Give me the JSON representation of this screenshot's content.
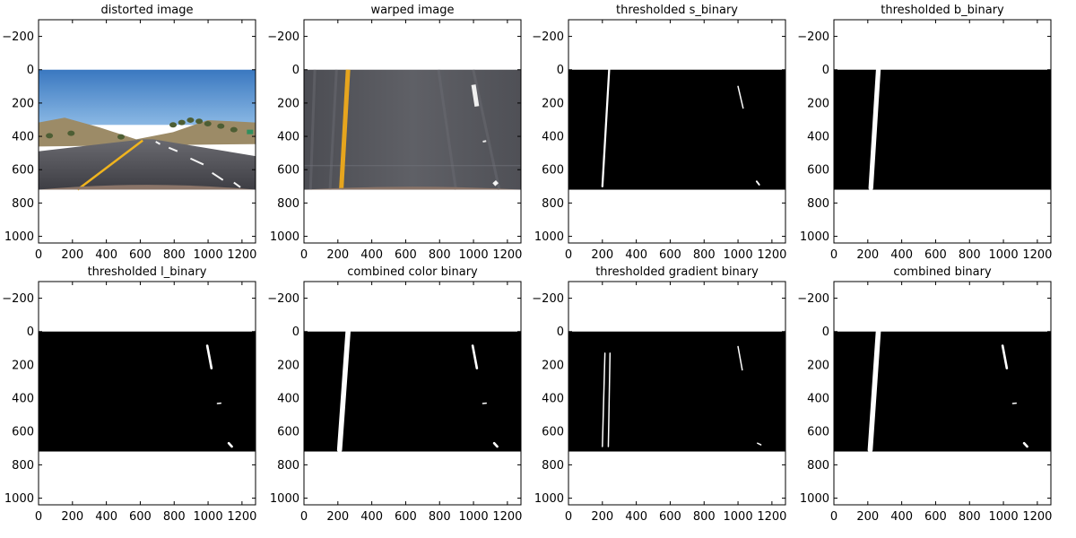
{
  "figure": {
    "axis_ticks": {
      "x": [
        0,
        200,
        400,
        600,
        800,
        1000,
        1200
      ],
      "y": [
        -200,
        0,
        200,
        400,
        600,
        800,
        1000
      ],
      "xlim": [
        0,
        1280
      ],
      "ylim": [
        1040,
        -300
      ]
    },
    "image_extent": {
      "width": 1280,
      "height": 720
    }
  },
  "chart_data": [
    {
      "type": "image",
      "title": "distorted image",
      "content": "color road photo",
      "colors": {
        "sky": "#4a86c8",
        "hills": "#9c8b67",
        "road": "#4e4e52",
        "lane_yellow": "#f0b41e"
      }
    },
    {
      "type": "image",
      "title": "warped image",
      "content": "color birds-eye road view",
      "colors": {
        "road": "#55565c",
        "lane_yellow": "#e6a51e"
      }
    },
    {
      "type": "image",
      "title": "thresholded s_binary",
      "content": "binary mask",
      "strokes": [
        {
          "points": [
            [
              240,
              0
            ],
            [
              200,
              700
            ]
          ],
          "w": 12
        },
        {
          "points": [
            [
              1000,
              100
            ],
            [
              1030,
              230
            ]
          ],
          "w": 5
        },
        {
          "points": [
            [
              1110,
              670
            ],
            [
              1125,
              690
            ]
          ],
          "w": 10
        }
      ]
    },
    {
      "type": "image",
      "title": "thresholded b_binary",
      "content": "binary mask",
      "strokes": [
        {
          "points": [
            [
              262,
              0
            ],
            [
              218,
              710
            ]
          ],
          "w": 28
        }
      ]
    },
    {
      "type": "image",
      "title": "thresholded l_binary",
      "content": "binary mask",
      "strokes": [
        {
          "points": [
            [
              995,
              85
            ],
            [
              1020,
              220
            ]
          ],
          "w": 14
        },
        {
          "points": [
            [
              1055,
              432
            ],
            [
              1075,
              430
            ]
          ],
          "w": 6
        },
        {
          "points": [
            [
              1122,
              670
            ],
            [
              1140,
              690
            ]
          ],
          "w": 14
        }
      ]
    },
    {
      "type": "image",
      "title": "combined color binary",
      "content": "binary mask",
      "strokes": [
        {
          "points": [
            [
              260,
              0
            ],
            [
              210,
              710
            ]
          ],
          "w": 30
        },
        {
          "points": [
            [
              995,
              85
            ],
            [
              1020,
              220
            ]
          ],
          "w": 14
        },
        {
          "points": [
            [
              1055,
              432
            ],
            [
              1075,
              430
            ]
          ],
          "w": 6
        },
        {
          "points": [
            [
              1122,
              670
            ],
            [
              1140,
              690
            ]
          ],
          "w": 14
        }
      ]
    },
    {
      "type": "image",
      "title": "thresholded gradient binary",
      "content": "binary mask",
      "strokes": [
        {
          "points": [
            [
              215,
              130
            ],
            [
              200,
              690
            ]
          ],
          "w": 4
        },
        {
          "points": [
            [
              245,
              130
            ],
            [
              235,
              690
            ]
          ],
          "w": 4
        },
        {
          "points": [
            [
              1000,
              90
            ],
            [
              1025,
              230
            ]
          ],
          "w": 4
        },
        {
          "points": [
            [
              1115,
              670
            ],
            [
              1135,
              680
            ]
          ],
          "w": 4
        }
      ]
    },
    {
      "type": "image",
      "title": "combined binary",
      "content": "binary mask",
      "strokes": [
        {
          "points": [
            [
              262,
              0
            ],
            [
              214,
              710
            ]
          ],
          "w": 30
        },
        {
          "points": [
            [
              995,
              85
            ],
            [
              1020,
              220
            ]
          ],
          "w": 14
        },
        {
          "points": [
            [
              1055,
              432
            ],
            [
              1075,
              430
            ]
          ],
          "w": 6
        },
        {
          "points": [
            [
              1122,
              670
            ],
            [
              1140,
              690
            ]
          ],
          "w": 14
        }
      ]
    }
  ]
}
